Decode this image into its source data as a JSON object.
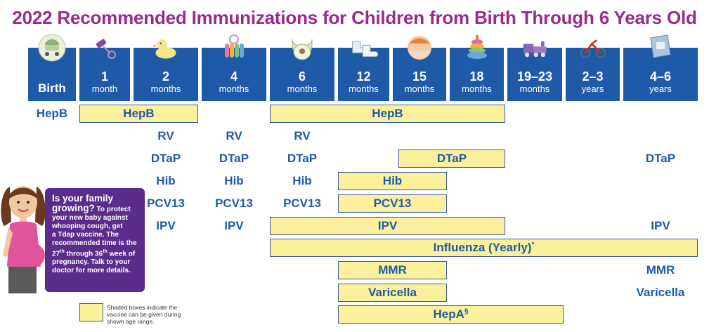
{
  "title": "2022 Recommended Immunizations for Children from Birth Through 6 Years Old",
  "colors": {
    "title": "#9b2a8f",
    "age_header": "#1f5aa8",
    "shade": "#fbf09b",
    "info_box": "#5b2c8c",
    "vaccine_text": "#1f5aa8"
  },
  "ages": [
    {
      "num": "",
      "unit": "",
      "birth": "Birth",
      "icon": "baby-carriage-icon"
    },
    {
      "num": "1",
      "unit": "month",
      "birth": "",
      "icon": "rattle-icon"
    },
    {
      "num": "2",
      "unit": "months",
      "birth": "",
      "icon": "rubber-duck-icon"
    },
    {
      "num": "4",
      "unit": "months",
      "birth": "",
      "icon": "teething-rings-icon"
    },
    {
      "num": "6",
      "unit": "months",
      "birth": "",
      "icon": "bib-icon"
    },
    {
      "num": "12",
      "unit": "months",
      "birth": "",
      "icon": "baby-shoes-icon"
    },
    {
      "num": "15",
      "unit": "months",
      "birth": "",
      "icon": "ball-icon"
    },
    {
      "num": "18",
      "unit": "months",
      "birth": "",
      "icon": "stacking-rings-icon"
    },
    {
      "num": "19–23",
      "unit": "months",
      "birth": "",
      "icon": "toy-train-icon"
    },
    {
      "num": "2–3",
      "unit": "years",
      "birth": "",
      "icon": "tricycle-icon"
    },
    {
      "num": "4–6",
      "unit": "years",
      "birth": "",
      "icon": "book-icon"
    }
  ],
  "vaccines": {
    "hepb": "HepB",
    "rv": "RV",
    "dtap": "DTaP",
    "hib": "Hib",
    "pcv13": "PCV13",
    "ipv": "IPV",
    "influenza": "Influenza (Yearly)",
    "influenza_mark": "*",
    "mmr": "MMR",
    "varicella": "Varicella",
    "hepa": "HepA",
    "hepa_mark": "§"
  },
  "info_box": {
    "heading_1": "Is your family",
    "heading_2": "growing?",
    "lead": "To protect",
    "line_1": "your new baby against",
    "line_2": "whooping cough, get",
    "line_3": "a Tdap vaccine.  The",
    "line_4": "recommended time is the",
    "line_5a": "27",
    "line_5b": "th",
    "line_5c": " through 36",
    "line_5d": "th",
    "line_5e": " week of",
    "line_6": "pregnancy. Talk to your",
    "line_7": "doctor for more details."
  },
  "legend": {
    "line_1": "Shaded boxes indicate the",
    "line_2": "vaccine can be given during",
    "line_3": "shown age range."
  }
}
